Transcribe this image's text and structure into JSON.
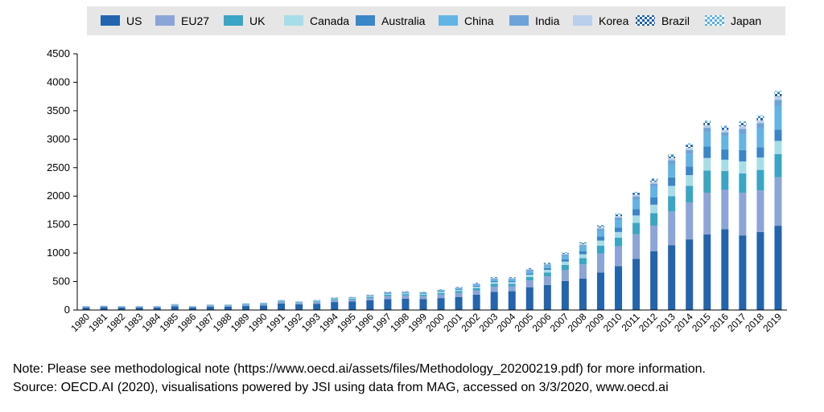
{
  "chart_data": {
    "type": "bar",
    "stacked": true,
    "title": "",
    "xlabel": "",
    "ylabel": "",
    "ylim": [
      0,
      4500
    ],
    "yticks": [
      0,
      500,
      1000,
      1500,
      2000,
      2500,
      3000,
      3500,
      4000,
      4500
    ],
    "grid": false,
    "legend_position": "top",
    "categories": [
      "1980",
      "1981",
      "1982",
      "1983",
      "1984",
      "1985",
      "1986",
      "1987",
      "1988",
      "1989",
      "1990",
      "1991",
      "1992",
      "1993",
      "1994",
      "1995",
      "1996",
      "1997",
      "1998",
      "1999",
      "2000",
      "2001",
      "2002",
      "2003",
      "2004",
      "2005",
      "2006",
      "2007",
      "2008",
      "2009",
      "2010",
      "2011",
      "2012",
      "2013",
      "2014",
      "2015",
      "2016",
      "2017",
      "2018",
      "2019"
    ],
    "series": [
      {
        "name": "US",
        "color": "#2364ad",
        "pattern": "solid",
        "values": [
          45,
          50,
          45,
          45,
          45,
          65,
          45,
          60,
          60,
          70,
          80,
          115,
          100,
          110,
          140,
          150,
          170,
          190,
          200,
          190,
          210,
          230,
          270,
          320,
          330,
          400,
          440,
          510,
          550,
          660,
          770,
          900,
          1030,
          1140,
          1240,
          1330,
          1420,
          1310,
          1370,
          1480
        ]
      },
      {
        "name": "EU27",
        "color": "#8ca5d8",
        "pattern": "solid",
        "values": [
          15,
          15,
          15,
          15,
          15,
          20,
          15,
          20,
          20,
          25,
          25,
          30,
          25,
          30,
          35,
          35,
          40,
          55,
          55,
          55,
          60,
          70,
          75,
          90,
          85,
          120,
          150,
          190,
          250,
          330,
          350,
          430,
          450,
          590,
          650,
          730,
          690,
          750,
          730,
          850
        ]
      },
      {
        "name": "UK",
        "color": "#3aa5c4",
        "pattern": "solid",
        "values": [
          5,
          5,
          5,
          5,
          5,
          8,
          5,
          8,
          8,
          10,
          10,
          12,
          10,
          12,
          15,
          15,
          20,
          25,
          25,
          25,
          30,
          35,
          40,
          50,
          45,
          60,
          70,
          90,
          110,
          140,
          150,
          200,
          220,
          270,
          290,
          390,
          330,
          340,
          360,
          410
        ]
      },
      {
        "name": "Canada",
        "color": "#a6dde8",
        "pattern": "solid",
        "values": [
          3,
          3,
          3,
          3,
          3,
          5,
          3,
          5,
          5,
          5,
          5,
          8,
          5,
          8,
          10,
          10,
          12,
          15,
          15,
          15,
          20,
          20,
          25,
          30,
          30,
          40,
          45,
          60,
          70,
          90,
          100,
          130,
          150,
          180,
          190,
          220,
          200,
          210,
          220,
          230
        ]
      },
      {
        "name": "Australia",
        "color": "#3b85c9",
        "pattern": "solid",
        "values": [
          2,
          2,
          2,
          2,
          2,
          3,
          2,
          3,
          3,
          4,
          4,
          5,
          4,
          5,
          6,
          6,
          8,
          10,
          10,
          10,
          12,
          12,
          15,
          18,
          18,
          25,
          30,
          40,
          50,
          70,
          80,
          110,
          130,
          150,
          150,
          200,
          180,
          200,
          180,
          200
        ]
      },
      {
        "name": "China",
        "color": "#63b4e4",
        "pattern": "solid",
        "values": [
          0,
          0,
          0,
          0,
          0,
          0,
          0,
          0,
          0,
          1,
          1,
          2,
          2,
          3,
          4,
          5,
          6,
          8,
          8,
          8,
          10,
          15,
          20,
          30,
          30,
          40,
          45,
          60,
          80,
          100,
          130,
          170,
          180,
          230,
          220,
          250,
          230,
          280,
          330,
          420
        ]
      },
      {
        "name": "India",
        "color": "#6da3d8",
        "pattern": "solid",
        "values": [
          1,
          1,
          1,
          1,
          1,
          2,
          1,
          2,
          2,
          2,
          3,
          3,
          3,
          4,
          5,
          5,
          6,
          8,
          8,
          8,
          10,
          10,
          12,
          15,
          15,
          20,
          20,
          25,
          30,
          40,
          45,
          55,
          60,
          70,
          70,
          80,
          70,
          90,
          90,
          100
        ]
      },
      {
        "name": "Korea",
        "color": "#b9cfec",
        "pattern": "solid",
        "values": [
          0,
          0,
          0,
          0,
          0,
          0,
          0,
          1,
          1,
          1,
          1,
          2,
          2,
          2,
          3,
          3,
          4,
          5,
          5,
          5,
          6,
          6,
          8,
          10,
          10,
          12,
          12,
          15,
          18,
          22,
          25,
          30,
          35,
          40,
          40,
          45,
          45,
          50,
          50,
          55
        ]
      },
      {
        "name": "Brazil",
        "color": "#1f5fae",
        "pattern": "check-dark",
        "values": [
          0,
          0,
          0,
          0,
          0,
          0,
          0,
          0,
          0,
          0,
          1,
          1,
          1,
          2,
          2,
          2,
          3,
          4,
          4,
          4,
          5,
          6,
          8,
          10,
          10,
          12,
          12,
          15,
          20,
          25,
          28,
          32,
          38,
          45,
          48,
          52,
          48,
          55,
          60,
          70
        ]
      },
      {
        "name": "Japan",
        "color": "#5aaee2",
        "pattern": "check-light",
        "values": [
          0,
          0,
          0,
          0,
          0,
          0,
          0,
          0,
          0,
          0,
          1,
          1,
          1,
          2,
          2,
          2,
          2,
          3,
          3,
          3,
          4,
          4,
          5,
          6,
          6,
          8,
          8,
          10,
          12,
          15,
          17,
          18,
          20,
          25,
          28,
          30,
          25,
          30,
          32,
          35
        ]
      }
    ]
  },
  "notes": {
    "note": "Note: Please see methodological note (https://www.oecd.ai/assets/files/Methodology_20200219.pdf) for more information.",
    "source": "Source: OECD.AI (2020), visualisations powered by JSI using data from MAG, accessed on 3/3/2020, www.oecd.ai"
  }
}
